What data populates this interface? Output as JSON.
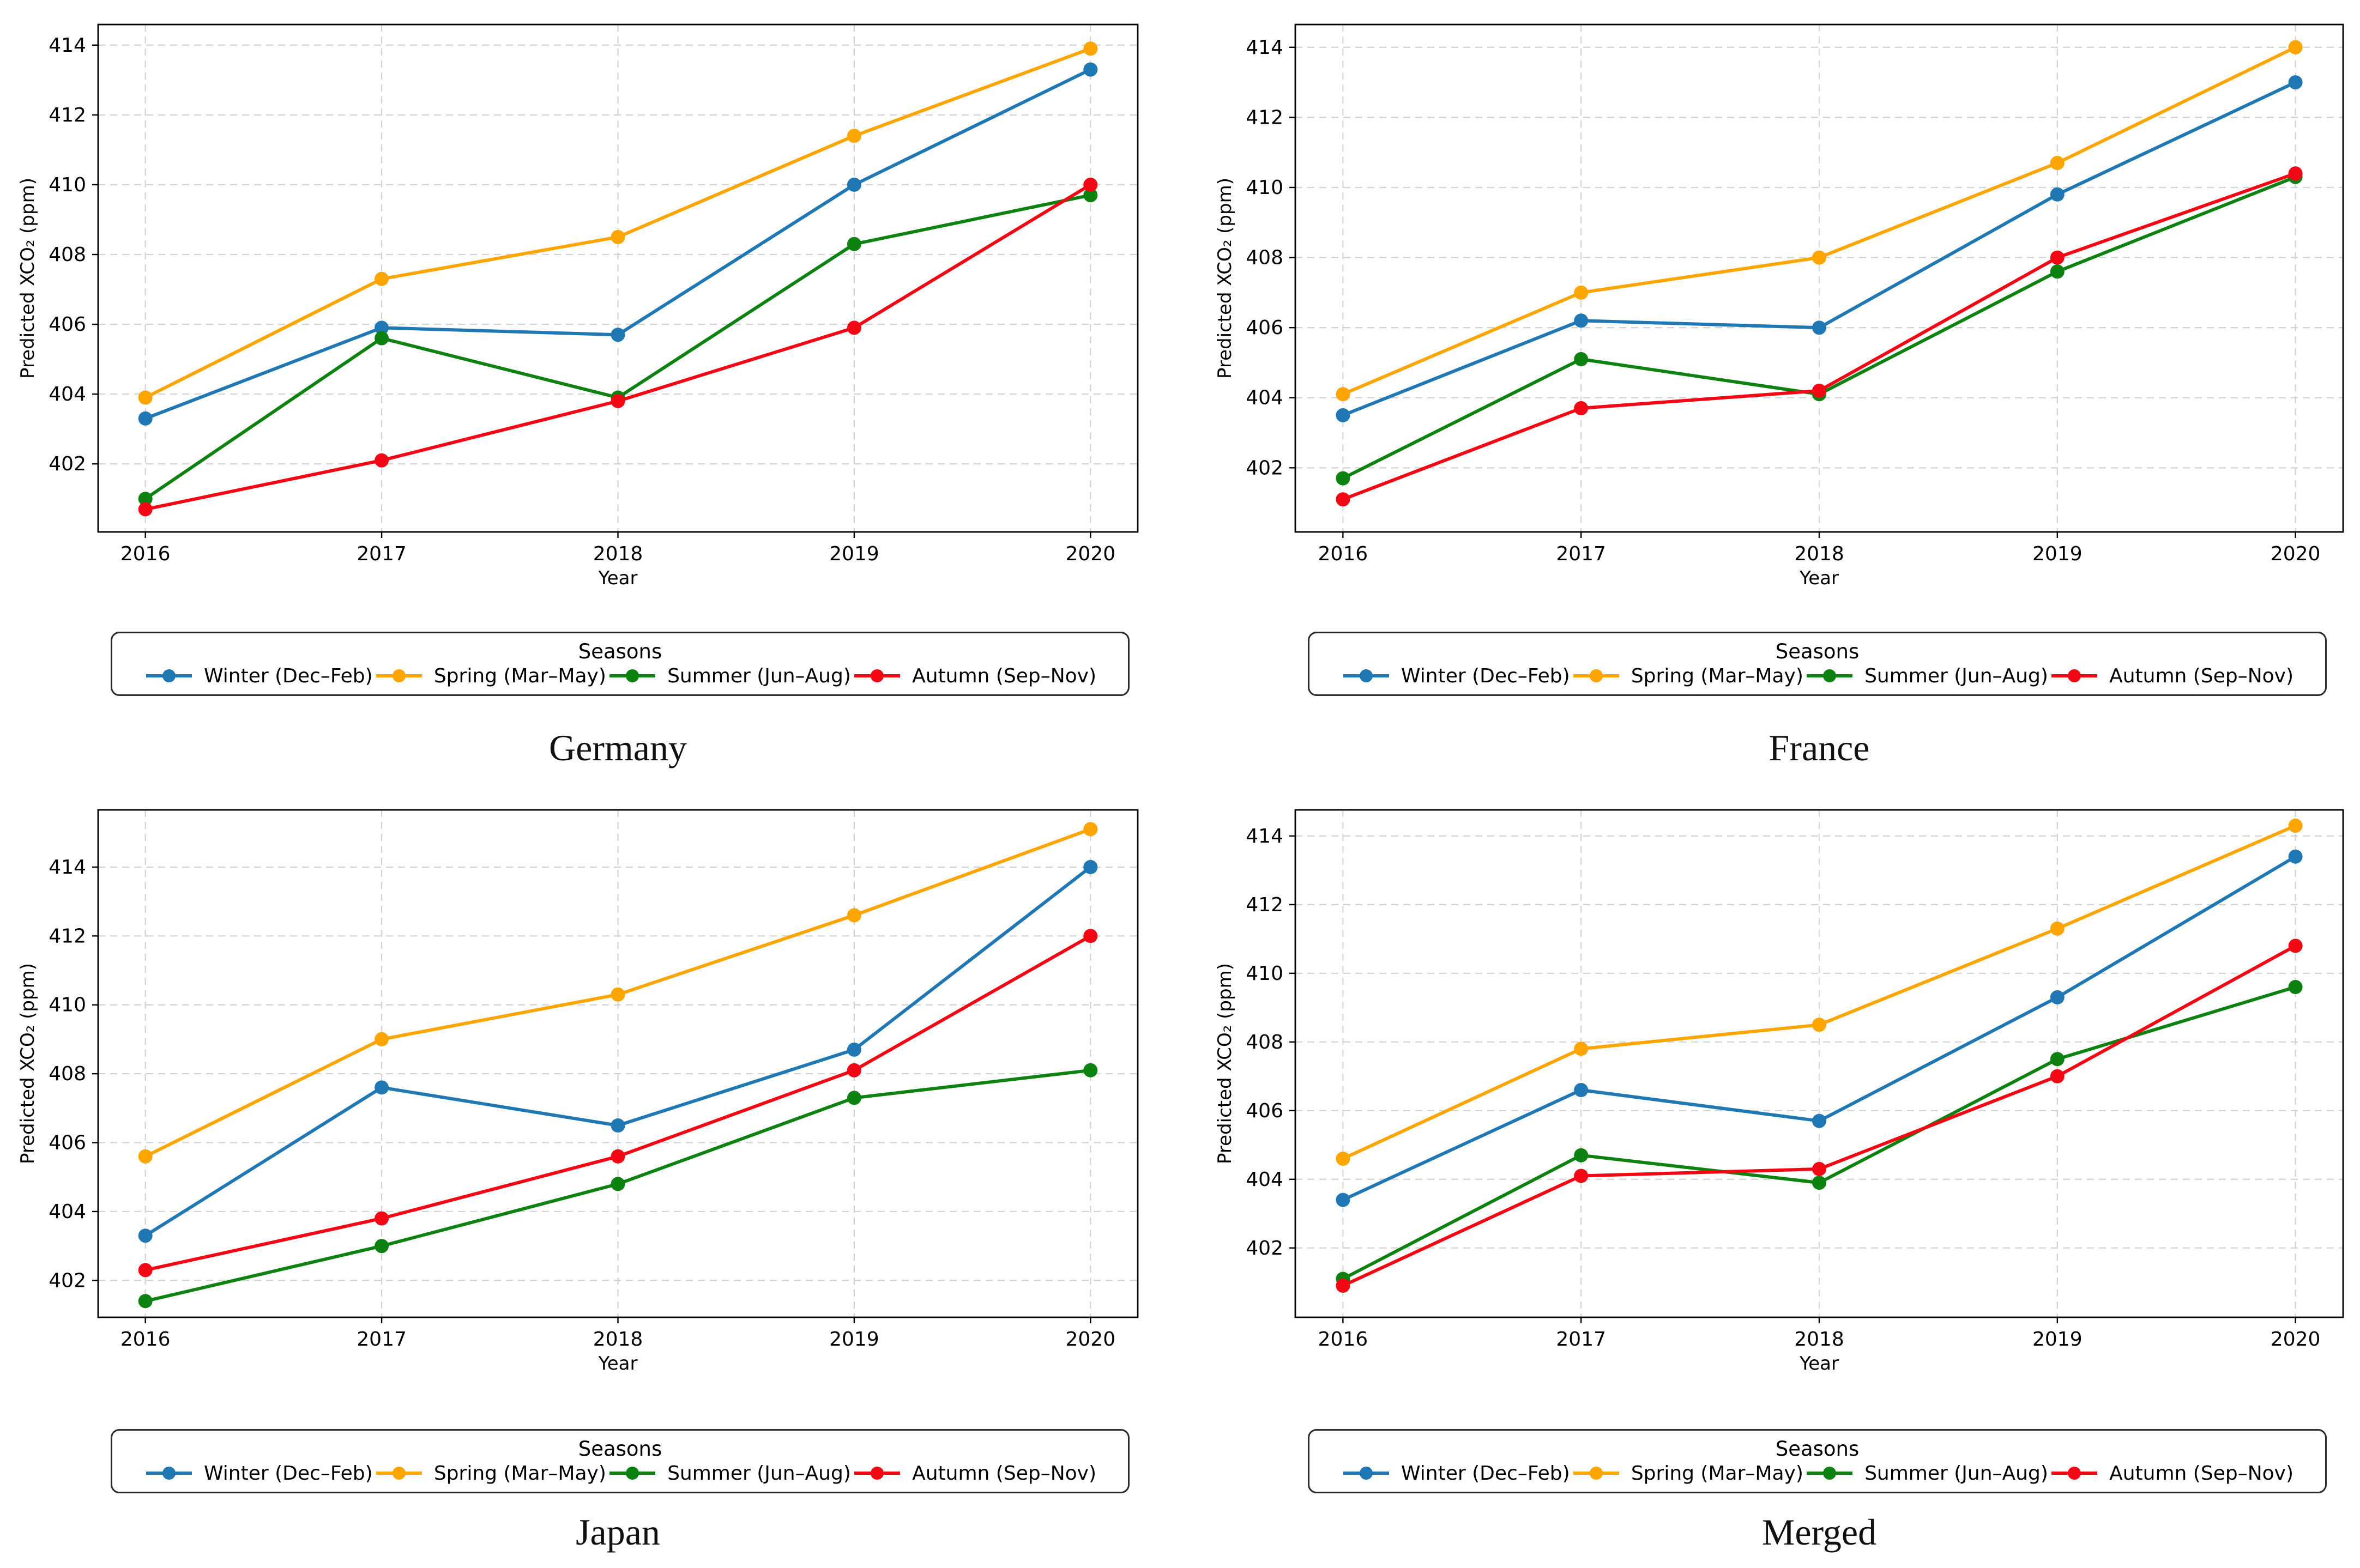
{
  "figure": {
    "background": "#ffffff",
    "x_axis_label": "Year",
    "y_axis_label": "Predicted XCO₂ (ppm)",
    "x_tick_labels": [
      "2016",
      "2017",
      "2018",
      "2019",
      "2020"
    ],
    "y_tick_labels": [
      "402",
      "404",
      "406",
      "408",
      "410",
      "412",
      "414"
    ]
  },
  "legend": {
    "title": "Seasons",
    "entries": [
      {
        "label": "Winter (Dec–Feb)",
        "color": "#1f77b4"
      },
      {
        "label": "Spring (Mar–May)",
        "color": "#ffa500"
      },
      {
        "label": "Summer (Jun–Aug)",
        "color": "#0e8210"
      },
      {
        "label": "Autumn (Sep–Nov)",
        "color": "#f40714"
      }
    ]
  },
  "chart_data": [
    {
      "type": "line",
      "title": "Germany",
      "xlabel": "Year",
      "ylabel": "Predicted XCO₂ (ppm)",
      "x": [
        2016,
        2017,
        2018,
        2019,
        2020
      ],
      "xlim": [
        2015.8,
        2020.2
      ],
      "ylim": [
        400.05,
        414.59
      ],
      "yticks": [
        402,
        404,
        406,
        408,
        410,
        412,
        414
      ],
      "grid": true,
      "legend_title": "Seasons",
      "legend_position": "below",
      "series": [
        {
          "name": "Winter (Dec–Feb)",
          "color": "#1f77b4",
          "values": [
            403.3,
            405.9,
            405.7,
            410.0,
            413.3
          ]
        },
        {
          "name": "Spring (Mar–May)",
          "color": "#ffa500",
          "values": [
            403.9,
            407.3,
            408.5,
            411.4,
            413.9
          ]
        },
        {
          "name": "Summer (Jun–Aug)",
          "color": "#0e8210",
          "values": [
            401.0,
            405.6,
            403.9,
            408.3,
            409.7
          ]
        },
        {
          "name": "Autumn (Sep–Nov)",
          "color": "#f40714",
          "values": [
            400.7,
            402.1,
            403.8,
            405.9,
            410.0
          ]
        }
      ]
    },
    {
      "type": "line",
      "title": "France",
      "xlabel": "Year",
      "ylabel": "Predicted XCO₂ (ppm)",
      "x": [
        2016,
        2017,
        2018,
        2019,
        2020
      ],
      "xlim": [
        2015.8,
        2020.2
      ],
      "ylim": [
        400.17,
        414.65
      ],
      "yticks": [
        402,
        404,
        406,
        408,
        410,
        412,
        414
      ],
      "grid": true,
      "legend_title": "Seasons",
      "legend_position": "below",
      "series": [
        {
          "name": "Winter (Dec–Feb)",
          "color": "#1f77b4",
          "values": [
            403.5,
            406.2,
            406.0,
            409.8,
            413.0
          ]
        },
        {
          "name": "Spring (Mar–May)",
          "color": "#ffa500",
          "values": [
            404.1,
            407.0,
            408.0,
            410.7,
            414.0
          ]
        },
        {
          "name": "Summer (Jun–Aug)",
          "color": "#0e8210",
          "values": [
            401.7,
            405.1,
            404.1,
            407.6,
            410.3
          ]
        },
        {
          "name": "Autumn (Sep–Nov)",
          "color": "#f40714",
          "values": [
            401.1,
            403.7,
            404.2,
            408.0,
            410.4
          ]
        }
      ]
    },
    {
      "type": "line",
      "title": "Japan",
      "xlabel": "Year",
      "ylabel": "Predicted XCO₂ (ppm)",
      "x": [
        2016,
        2017,
        2018,
        2019,
        2020
      ],
      "xlim": [
        2015.8,
        2020.2
      ],
      "ylim": [
        400.93,
        415.66
      ],
      "yticks": [
        402,
        404,
        406,
        408,
        410,
        412,
        414
      ],
      "grid": true,
      "legend_title": "Seasons",
      "legend_position": "below",
      "series": [
        {
          "name": "Winter (Dec–Feb)",
          "color": "#1f77b4",
          "values": [
            403.3,
            407.6,
            406.5,
            408.7,
            414.0
          ]
        },
        {
          "name": "Spring (Mar–May)",
          "color": "#ffa500",
          "values": [
            405.6,
            409.0,
            410.3,
            412.6,
            415.1
          ]
        },
        {
          "name": "Summer (Jun–Aug)",
          "color": "#0e8210",
          "values": [
            401.4,
            403.0,
            404.8,
            407.3,
            408.1
          ]
        },
        {
          "name": "Autumn (Sep–Nov)",
          "color": "#f40714",
          "values": [
            402.3,
            403.8,
            405.6,
            408.1,
            412.0
          ]
        }
      ]
    },
    {
      "type": "line",
      "title": "Merged",
      "xlabel": "Year",
      "ylabel": "Predicted XCO₂ (ppm)",
      "x": [
        2016,
        2017,
        2018,
        2019,
        2020
      ],
      "xlim": [
        2015.8,
        2020.2
      ],
      "ylim": [
        399.98,
        414.76
      ],
      "yticks": [
        402,
        404,
        406,
        408,
        410,
        412,
        414
      ],
      "grid": true,
      "legend_title": "Seasons",
      "legend_position": "below",
      "series": [
        {
          "name": "Winter (Dec–Feb)",
          "color": "#1f77b4",
          "values": [
            403.4,
            406.6,
            405.7,
            409.3,
            413.4
          ]
        },
        {
          "name": "Spring (Mar–May)",
          "color": "#ffa500",
          "values": [
            404.6,
            407.8,
            408.5,
            411.3,
            414.3
          ]
        },
        {
          "name": "Summer (Jun–Aug)",
          "color": "#0e8210",
          "values": [
            401.1,
            404.7,
            403.9,
            407.5,
            409.6
          ]
        },
        {
          "name": "Autumn (Sep–Nov)",
          "color": "#f40714",
          "values": [
            400.9,
            404.1,
            404.3,
            407.0,
            410.8
          ]
        }
      ]
    }
  ]
}
